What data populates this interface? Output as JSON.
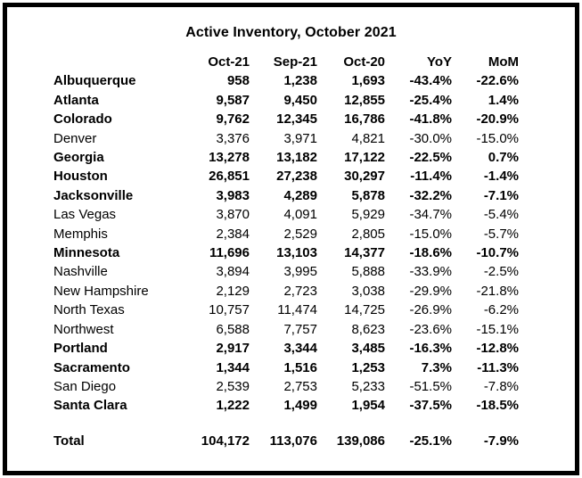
{
  "colors": {
    "border": "#000000",
    "text": "#000000",
    "background": "#ffffff"
  },
  "chart_data": {
    "type": "table",
    "title": "Active Inventory, October 2021",
    "columns": [
      "",
      "Oct-21",
      "Sep-21",
      "Oct-20",
      "YoY",
      "MoM"
    ],
    "rows": [
      {
        "label": "Albuquerque",
        "bold": true,
        "values": [
          "958",
          "1,238",
          "1,693",
          "-43.4%",
          "-22.6%"
        ]
      },
      {
        "label": "Atlanta",
        "bold": true,
        "values": [
          "9,587",
          "9,450",
          "12,855",
          "-25.4%",
          "1.4%"
        ]
      },
      {
        "label": "Colorado",
        "bold": true,
        "values": [
          "9,762",
          "12,345",
          "16,786",
          "-41.8%",
          "-20.9%"
        ]
      },
      {
        "label": "Denver",
        "bold": false,
        "values": [
          "3,376",
          "3,971",
          "4,821",
          "-30.0%",
          "-15.0%"
        ]
      },
      {
        "label": "Georgia",
        "bold": true,
        "values": [
          "13,278",
          "13,182",
          "17,122",
          "-22.5%",
          "0.7%"
        ]
      },
      {
        "label": "Houston",
        "bold": true,
        "values": [
          "26,851",
          "27,238",
          "30,297",
          "-11.4%",
          "-1.4%"
        ]
      },
      {
        "label": "Jacksonville",
        "bold": true,
        "values": [
          "3,983",
          "4,289",
          "5,878",
          "-32.2%",
          "-7.1%"
        ]
      },
      {
        "label": "Las Vegas",
        "bold": false,
        "values": [
          "3,870",
          "4,091",
          "5,929",
          "-34.7%",
          "-5.4%"
        ]
      },
      {
        "label": "Memphis",
        "bold": false,
        "values": [
          "2,384",
          "2,529",
          "2,805",
          "-15.0%",
          "-5.7%"
        ]
      },
      {
        "label": "Minnesota",
        "bold": true,
        "values": [
          "11,696",
          "13,103",
          "14,377",
          "-18.6%",
          "-10.7%"
        ]
      },
      {
        "label": "Nashville",
        "bold": false,
        "values": [
          "3,894",
          "3,995",
          "5,888",
          "-33.9%",
          "-2.5%"
        ]
      },
      {
        "label": "New Hampshire",
        "bold": false,
        "values": [
          "2,129",
          "2,723",
          "3,038",
          "-29.9%",
          "-21.8%"
        ]
      },
      {
        "label": "North Texas",
        "bold": false,
        "values": [
          "10,757",
          "11,474",
          "14,725",
          "-26.9%",
          "-6.2%"
        ]
      },
      {
        "label": "Northwest",
        "bold": false,
        "values": [
          "6,588",
          "7,757",
          "8,623",
          "-23.6%",
          "-15.1%"
        ]
      },
      {
        "label": "Portland",
        "bold": true,
        "values": [
          "2,917",
          "3,344",
          "3,485",
          "-16.3%",
          "-12.8%"
        ]
      },
      {
        "label": "Sacramento",
        "bold": true,
        "values": [
          "1,344",
          "1,516",
          "1,253",
          "7.3%",
          "-11.3%"
        ]
      },
      {
        "label": "San Diego",
        "bold": false,
        "values": [
          "2,539",
          "2,753",
          "5,233",
          "-51.5%",
          "-7.8%"
        ]
      },
      {
        "label": "Santa Clara",
        "bold": true,
        "values": [
          "1,222",
          "1,499",
          "1,954",
          "-37.5%",
          "-18.5%"
        ]
      }
    ],
    "total": {
      "label": "Total",
      "bold": true,
      "values": [
        "104,172",
        "113,076",
        "139,086",
        "-25.1%",
        "-7.9%"
      ]
    }
  }
}
